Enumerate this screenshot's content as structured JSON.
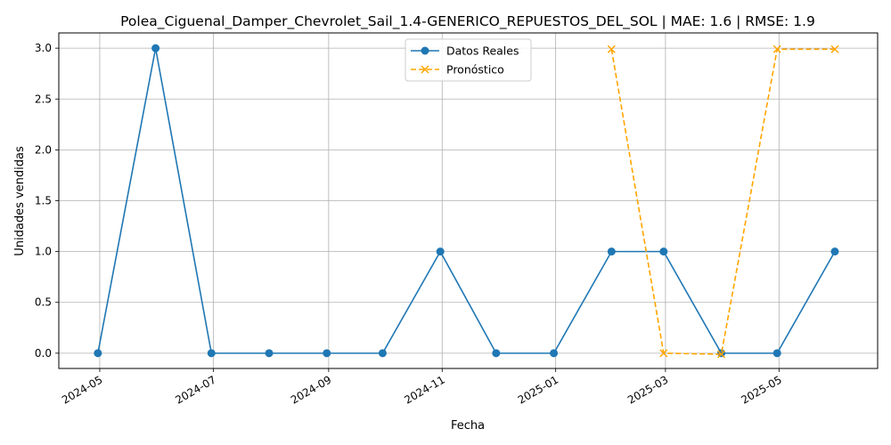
{
  "chart_data": {
    "type": "line",
    "title": "Polea_Ciguenal_Damper_Chevrolet_Sail_1.4-GENERICO_REPUESTOS_DEL_SOL | MAE: 1.6 | RMSE: 1.9",
    "xlabel": "Fecha",
    "ylabel": "Unidades vendidas",
    "xlim": [
      "2024-04-09",
      "2025-06-23"
    ],
    "ylim": [
      -0.15,
      3.15
    ],
    "x_ticks": [
      "2024-05",
      "2024-07",
      "2024-09",
      "2024-11",
      "2025-01",
      "2025-03",
      "2025-05"
    ],
    "y_ticks": [
      "0.0",
      "0.5",
      "1.0",
      "1.5",
      "2.0",
      "2.5",
      "3.0"
    ],
    "grid": true,
    "legend_position": "upper-center",
    "series": [
      {
        "name": "Datos Reales",
        "color": "#1f77b4",
        "style": "solid",
        "marker": "circle",
        "x": [
          "2024-04-30",
          "2024-05-31",
          "2024-06-30",
          "2024-07-31",
          "2024-08-31",
          "2024-09-30",
          "2024-10-31",
          "2024-11-30",
          "2024-12-31",
          "2025-01-31",
          "2025-02-28",
          "2025-03-31",
          "2025-04-30",
          "2025-05-31"
        ],
        "values": [
          0,
          3,
          0,
          0,
          0,
          0,
          1,
          0,
          0,
          1,
          1,
          0,
          0,
          1
        ]
      },
      {
        "name": "Pronóstico",
        "color": "#ffa500",
        "style": "dashed",
        "marker": "x",
        "x": [
          "2025-01-31",
          "2025-02-28",
          "2025-03-31",
          "2025-04-30",
          "2025-05-31"
        ],
        "values": [
          2.99,
          0.0,
          -0.01,
          2.99,
          2.99
        ]
      }
    ]
  }
}
